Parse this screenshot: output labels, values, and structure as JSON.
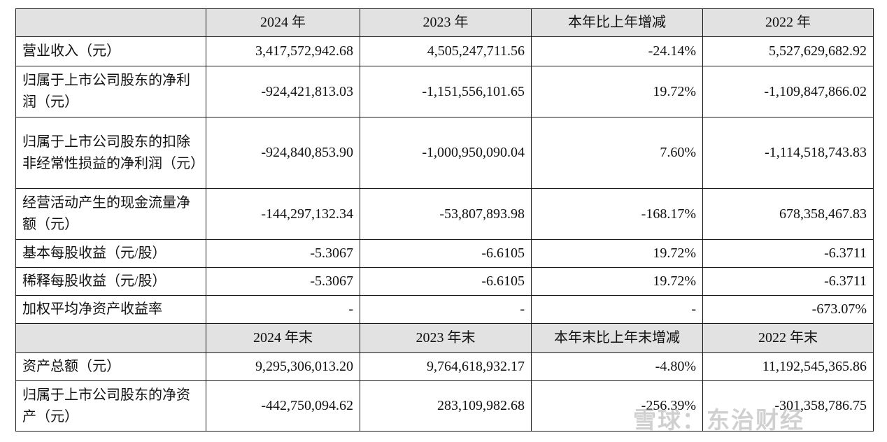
{
  "header1": [
    "2024 年",
    "2023 年",
    "本年比上年增减",
    "2022 年"
  ],
  "rows1": [
    {
      "label": "营业收入（元）",
      "v2024": "3,417,572,942.68",
      "v2023": "4,505,247,711.56",
      "change": "-24.14%",
      "v2022": "5,527,629,682.92"
    },
    {
      "label": "归属于上市公司股东的净利润（元）",
      "v2024": "-924,421,813.03",
      "v2023": "-1,151,556,101.65",
      "change": "19.72%",
      "v2022": "-1,109,847,866.02"
    },
    {
      "label": "归属于上市公司股东的扣除非经常性损益的净利润（元）",
      "v2024": "-924,840,853.90",
      "v2023": "-1,000,950,090.04",
      "change": "7.60%",
      "v2022": "-1,114,518,743.83"
    },
    {
      "label": "经营活动产生的现金流量净额（元）",
      "v2024": "-144,297,132.34",
      "v2023": "-53,807,893.98",
      "change": "-168.17%",
      "v2022": "678,358,467.83"
    },
    {
      "label": "基本每股收益（元/股）",
      "v2024": "-5.3067",
      "v2023": "-6.6105",
      "change": "19.72%",
      "v2022": "-6.3711"
    },
    {
      "label": "稀释每股收益（元/股）",
      "v2024": "-5.3067",
      "v2023": "-6.6105",
      "change": "19.72%",
      "v2022": "-6.3711"
    },
    {
      "label": "加权平均净资产收益率",
      "v2024": "-",
      "v2023": "-",
      "change": "-",
      "v2022": "-673.07%"
    }
  ],
  "header2": [
    "2024 年末",
    "2023 年末",
    "本年末比上年末增减",
    "2022 年末"
  ],
  "rows2": [
    {
      "label": "资产总额（元）",
      "v2024": "9,295,306,013.20",
      "v2023": "9,764,618,932.17",
      "change": "-4.80%",
      "v2022": "11,192,545,365.86"
    },
    {
      "label": "归属于上市公司股东的净资产（元）",
      "v2024": "-442,750,094.62",
      "v2023": "283,109,982.68",
      "change": "-256.39%",
      "v2022": "-301,358,786.75"
    }
  ],
  "watermark": "雪球：东治财经"
}
